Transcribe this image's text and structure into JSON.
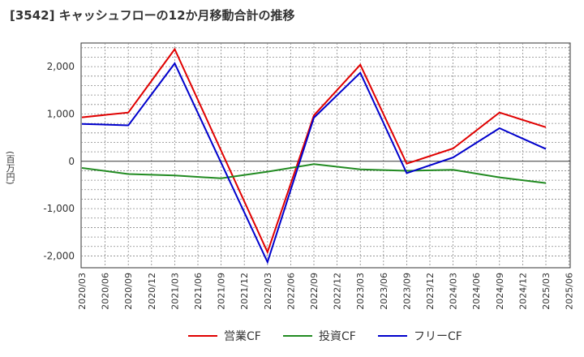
{
  "chart_data": {
    "type": "line",
    "title": "[3542]  キャッシュフローの12か月移動合計の推移",
    "ylabel": "(百万円)",
    "xlabel": "",
    "x": [
      "2020/03",
      "2020/06",
      "2020/09",
      "2020/12",
      "2021/03",
      "2021/06",
      "2021/09",
      "2021/12",
      "2022/03",
      "2022/06",
      "2022/09",
      "2022/12",
      "2023/03",
      "2023/06",
      "2023/09",
      "2023/12",
      "2024/03",
      "2024/06",
      "2024/09",
      "2024/12",
      "2025/03",
      "2025/06"
    ],
    "yticks": [
      2000,
      1000,
      0,
      -1000,
      -2000
    ],
    "ytick_labels": [
      "2,000",
      "1,000",
      "0",
      "-1,000",
      "-2,000"
    ],
    "ylim": [
      -2250,
      2500
    ],
    "grid": true,
    "legend_position": "bottom",
    "series": [
      {
        "name": "営業CF",
        "color": "#e00000",
        "points": [
          [
            "2020/03",
            930
          ],
          [
            "2020/09",
            1030
          ],
          [
            "2021/03",
            2370
          ],
          [
            "2022/03",
            -1920
          ],
          [
            "2022/09",
            970
          ],
          [
            "2023/03",
            2040
          ],
          [
            "2023/09",
            -50
          ],
          [
            "2024/03",
            270
          ],
          [
            "2024/09",
            1030
          ],
          [
            "2025/03",
            720
          ]
        ]
      },
      {
        "name": "投資CF",
        "color": "#228b22",
        "points": [
          [
            "2020/03",
            -140
          ],
          [
            "2020/09",
            -270
          ],
          [
            "2021/03",
            -300
          ],
          [
            "2021/09",
            -360
          ],
          [
            "2022/03",
            -220
          ],
          [
            "2022/09",
            -60
          ],
          [
            "2023/03",
            -170
          ],
          [
            "2023/09",
            -200
          ],
          [
            "2024/03",
            -180
          ],
          [
            "2024/09",
            -340
          ],
          [
            "2025/03",
            -460
          ]
        ]
      },
      {
        "name": "フリーCF",
        "color": "#0000cc",
        "points": [
          [
            "2020/03",
            790
          ],
          [
            "2020/09",
            760
          ],
          [
            "2021/03",
            2070
          ],
          [
            "2022/03",
            -2130
          ],
          [
            "2022/09",
            920
          ],
          [
            "2023/03",
            1870
          ],
          [
            "2023/09",
            -250
          ],
          [
            "2024/03",
            80
          ],
          [
            "2024/09",
            700
          ],
          [
            "2025/03",
            260
          ]
        ]
      }
    ]
  }
}
